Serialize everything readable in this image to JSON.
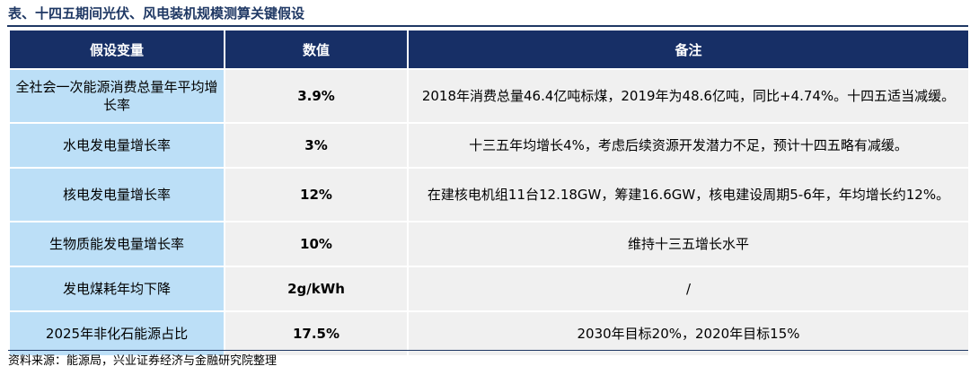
{
  "title": "表、十四五期间光伏、风电装机规模测算关键假设",
  "table": {
    "headers": [
      "假设变量",
      "数值",
      "备注"
    ],
    "rows": [
      {
        "variable": "全社会一次能源消费总量年平均增长率",
        "value": "3.9%",
        "note": "2018年消费总量46.4亿吨标煤，2019年为48.6亿吨，同比+4.74%。十四五适当减缓。"
      },
      {
        "variable": "水电发电量增长率",
        "value": "3%",
        "note": "十三五年均增长4%，考虑后续资源开发潜力不足，预计十四五略有减缓。"
      },
      {
        "variable": "核电发电量增长率",
        "value": "12%",
        "note": "在建核电机组11台12.18GW，筹建16.6GW，核电建设周期5-6年，年均增长约12%。"
      },
      {
        "variable": "生物质能发电量增长率",
        "value": "10%",
        "note": "维持十三五增长水平"
      },
      {
        "variable": "发电煤耗年均下降",
        "value": "2g/kWh",
        "note": "/"
      },
      {
        "variable": "2025年非化石能源占比",
        "value": "17.5%",
        "note": "2030年目标20%，2020年目标15%"
      }
    ]
  },
  "source": "资料来源：能源局，兴业证券经济与金融研究院整理"
}
